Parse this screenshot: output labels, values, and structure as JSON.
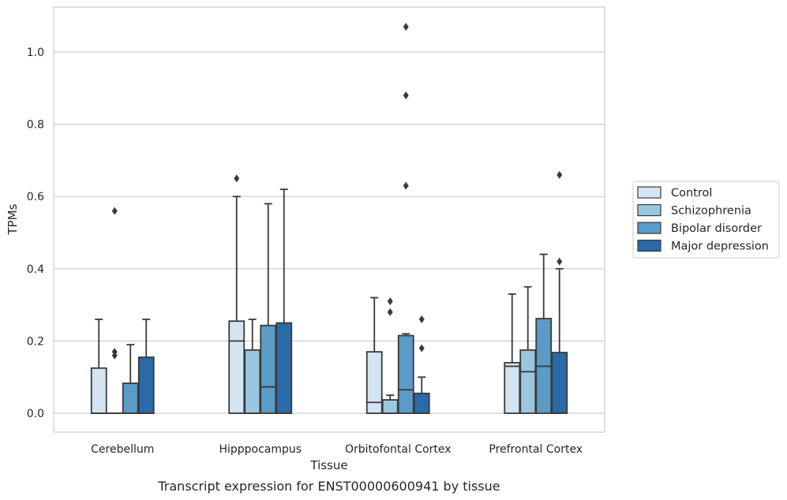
{
  "chart_data": {
    "type": "box",
    "title": "",
    "xlabel": "Tissue",
    "ylabel": "TPMs",
    "caption": "Transcript expression for ENST00000600941 by tissue",
    "ylim": [
      -0.05,
      1.13
    ],
    "yticks": [
      0.0,
      0.2,
      0.4,
      0.6,
      0.8,
      1.0
    ],
    "ytick_labels": [
      "0.0",
      "0.2",
      "0.4",
      "0.6",
      "0.8",
      "1.0"
    ],
    "categories": [
      "Cerebellum",
      "Hipppocampus",
      "Orbitofontal Cortex",
      "Prefrontal Cortex"
    ],
    "grid": "horizontal",
    "legend_position": "right",
    "series": [
      {
        "name": "Control",
        "color": "#d3e4f3",
        "boxes": [
          {
            "q1": 0.0,
            "median": 0.0,
            "q3": 0.125,
            "whisker_low": 0.0,
            "whisker_high": 0.26,
            "outliers": []
          },
          {
            "q1": 0.0,
            "median": 0.2,
            "q3": 0.255,
            "whisker_low": 0.0,
            "whisker_high": 0.6,
            "outliers": [
              0.65
            ]
          },
          {
            "q1": 0.0,
            "median": 0.03,
            "q3": 0.17,
            "whisker_low": 0.0,
            "whisker_high": 0.32,
            "outliers": []
          },
          {
            "q1": 0.0,
            "median": 0.13,
            "q3": 0.14,
            "whisker_low": 0.0,
            "whisker_high": 0.33,
            "outliers": []
          }
        ]
      },
      {
        "name": "Schizophrenia",
        "color": "#9ac7e0",
        "boxes": [
          {
            "q1": 0.0,
            "median": 0.0,
            "q3": 0.0,
            "whisker_low": 0.0,
            "whisker_high": 0.0,
            "outliers": [
              0.56,
              0.17,
              0.16
            ]
          },
          {
            "q1": 0.0,
            "median": 0.0,
            "q3": 0.175,
            "whisker_low": 0.0,
            "whisker_high": 0.26,
            "outliers": []
          },
          {
            "q1": 0.0,
            "median": 0.0,
            "q3": 0.037,
            "whisker_low": 0.0,
            "whisker_high": 0.05,
            "outliers": [
              0.31,
              0.28
            ]
          },
          {
            "q1": 0.0,
            "median": 0.115,
            "q3": 0.175,
            "whisker_low": 0.0,
            "whisker_high": 0.35,
            "outliers": []
          }
        ]
      },
      {
        "name": "Bipolar disorder",
        "color": "#5b9bc8",
        "boxes": [
          {
            "q1": 0.0,
            "median": 0.0,
            "q3": 0.083,
            "whisker_low": 0.0,
            "whisker_high": 0.19,
            "outliers": []
          },
          {
            "q1": 0.0,
            "median": 0.073,
            "q3": 0.243,
            "whisker_low": 0.0,
            "whisker_high": 0.58,
            "outliers": []
          },
          {
            "q1": 0.0,
            "median": 0.065,
            "q3": 0.215,
            "whisker_low": 0.0,
            "whisker_high": 0.22,
            "outliers": [
              1.07,
              0.88,
              0.63
            ]
          },
          {
            "q1": 0.0,
            "median": 0.13,
            "q3": 0.262,
            "whisker_low": 0.0,
            "whisker_high": 0.44,
            "outliers": []
          }
        ]
      },
      {
        "name": "Major depression",
        "color": "#2a6aa8",
        "boxes": [
          {
            "q1": 0.0,
            "median": 0.0,
            "q3": 0.155,
            "whisker_low": 0.0,
            "whisker_high": 0.26,
            "outliers": []
          },
          {
            "q1": 0.0,
            "median": 0.0,
            "q3": 0.25,
            "whisker_low": 0.0,
            "whisker_high": 0.62,
            "outliers": []
          },
          {
            "q1": 0.0,
            "median": 0.0,
            "q3": 0.055,
            "whisker_low": 0.0,
            "whisker_high": 0.1,
            "outliers": [
              0.26,
              0.18
            ]
          },
          {
            "q1": 0.0,
            "median": 0.0,
            "q3": 0.168,
            "whisker_low": 0.0,
            "whisker_high": 0.4,
            "outliers": [
              0.66,
              0.42
            ]
          }
        ]
      }
    ]
  }
}
